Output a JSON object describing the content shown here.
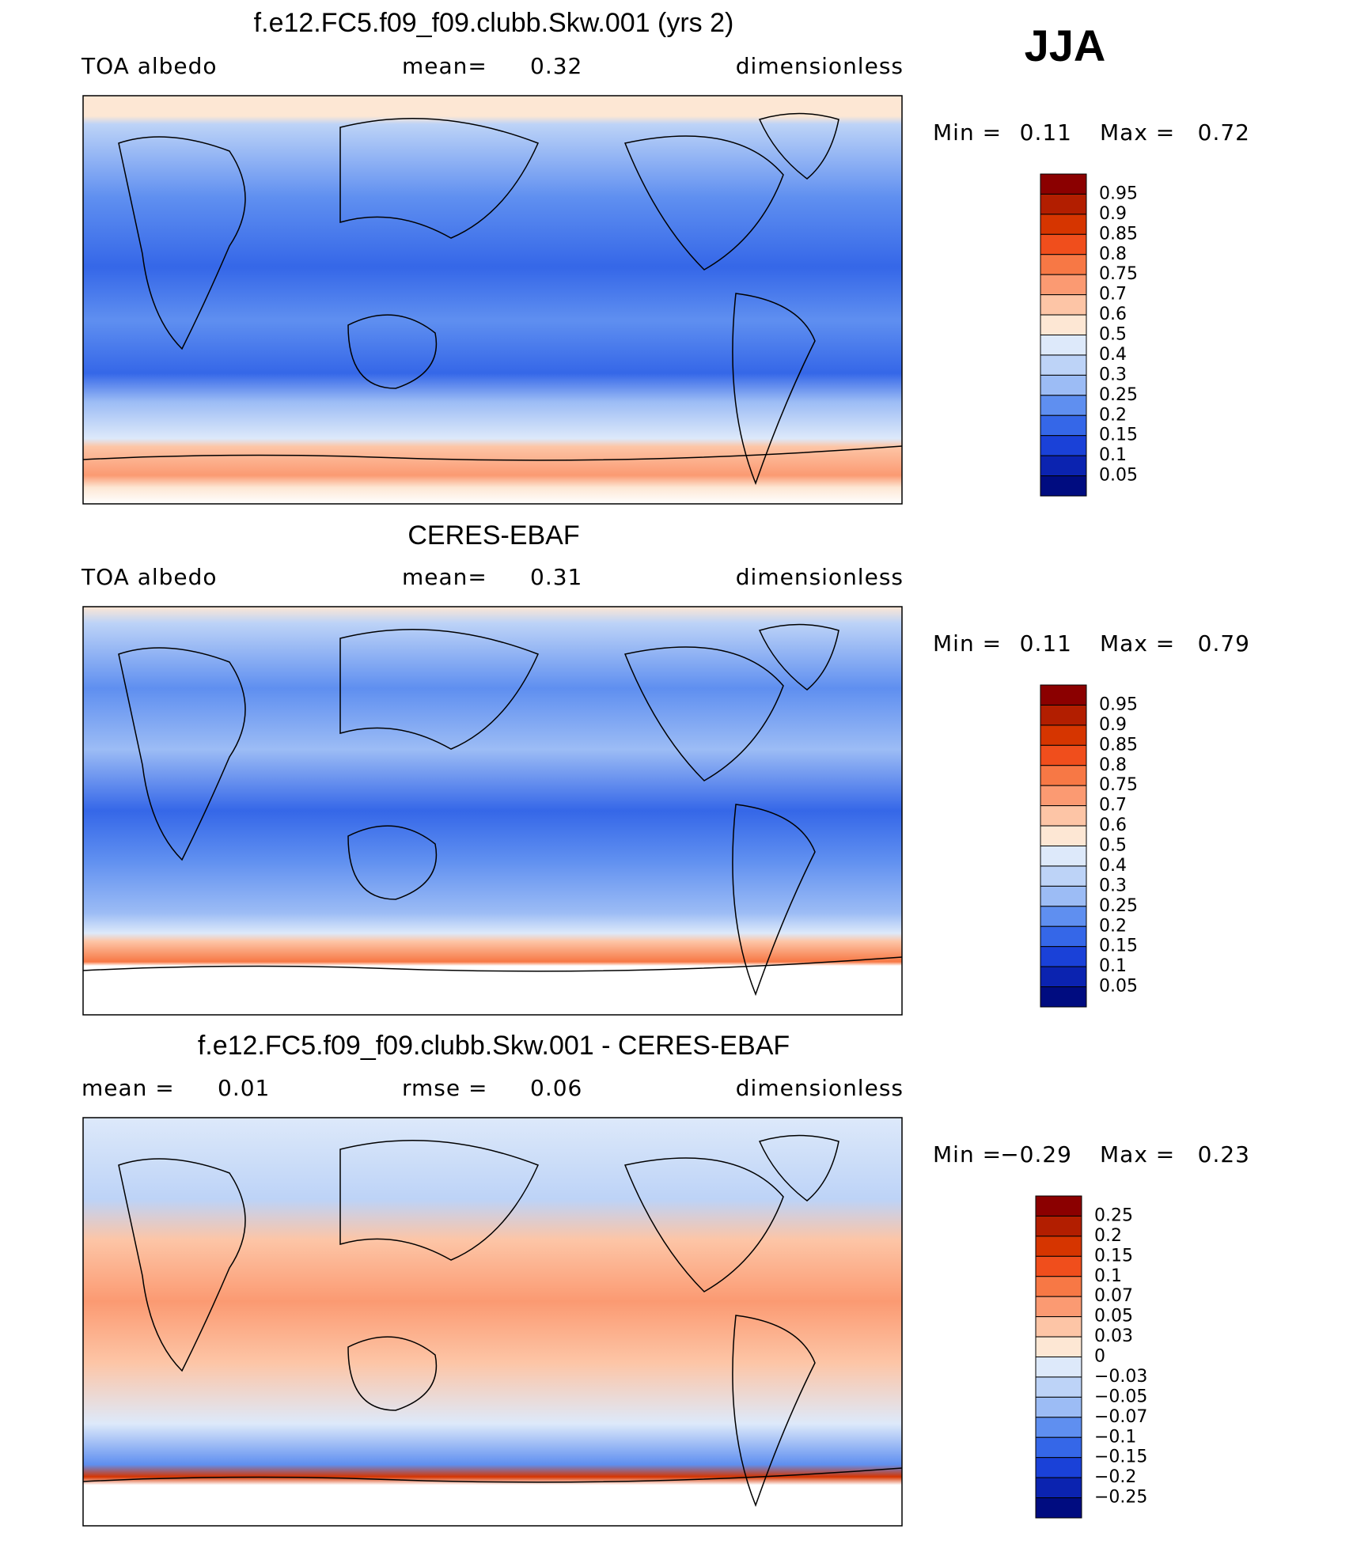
{
  "season": "JJA",
  "panels": [
    {
      "title": "f.e12.FC5.f09_f09.clubb.Skw.001 (yrs 2)",
      "left": "TOA  albedo",
      "mid_label": "mean=",
      "mid_value": "0.32",
      "right": "dimensionless",
      "min_label": "Min  =",
      "min": "0.11",
      "max_label": "Max  =",
      "max": "0.72",
      "colorbar": {
        "labels": [
          "0.95",
          "0.9",
          "0.85",
          "0.8",
          "0.75",
          "0.7",
          "0.6",
          "0.5",
          "0.4",
          "0.3",
          "0.25",
          "0.2",
          "0.15",
          "0.1",
          "0.05"
        ],
        "colors": [
          "#8b0000",
          "#b21e00",
          "#d63500",
          "#f04e1c",
          "#f77845",
          "#fb9a72",
          "#fdc5a6",
          "#fde7d4",
          "#dde9fa",
          "#bdd3f7",
          "#9cbcf5",
          "#5f8ff0",
          "#3567e8",
          "#1a41d8",
          "#0b23b0",
          "#000c80"
        ]
      }
    },
    {
      "title": "CERES-EBAF",
      "left": "TOA  albedo",
      "mid_label": "mean=",
      "mid_value": "0.31",
      "right": "dimensionless",
      "min_label": "Min  =",
      "min": "0.11",
      "max_label": "Max  =",
      "max": "0.79",
      "colorbar": {
        "labels": [
          "0.95",
          "0.9",
          "0.85",
          "0.8",
          "0.75",
          "0.7",
          "0.6",
          "0.5",
          "0.4",
          "0.3",
          "0.25",
          "0.2",
          "0.15",
          "0.1",
          "0.05"
        ],
        "colors": [
          "#8b0000",
          "#b21e00",
          "#d63500",
          "#f04e1c",
          "#f77845",
          "#fb9a72",
          "#fdc5a6",
          "#fde7d4",
          "#dde9fa",
          "#bdd3f7",
          "#9cbcf5",
          "#5f8ff0",
          "#3567e8",
          "#1a41d8",
          "#0b23b0",
          "#000c80"
        ]
      }
    },
    {
      "title": "f.e12.FC5.f09_f09.clubb.Skw.001 - CERES-EBAF",
      "left": "mean  =",
      "left_value": "0.01",
      "mid_label": "rmse  =",
      "mid_value": "0.06",
      "right": "dimensionless",
      "min_label": "Min  =",
      "min": "−0.29",
      "max_label": "Max  =",
      "max": "0.23",
      "colorbar": {
        "labels": [
          "0.25",
          "0.2",
          "0.15",
          "0.1",
          "0.07",
          "0.05",
          "0.03",
          "0",
          "−0.03",
          "−0.05",
          "−0.07",
          "−0.1",
          "−0.15",
          "−0.2",
          "−0.25"
        ],
        "colors": [
          "#8b0000",
          "#b21e00",
          "#d63500",
          "#f04e1c",
          "#f77845",
          "#fb9a72",
          "#fdc5a6",
          "#fde7d4",
          "#dde9fa",
          "#bdd3f7",
          "#9cbcf5",
          "#5f8ff0",
          "#3567e8",
          "#1a41d8",
          "#0b23b0",
          "#000c80"
        ]
      }
    }
  ]
}
